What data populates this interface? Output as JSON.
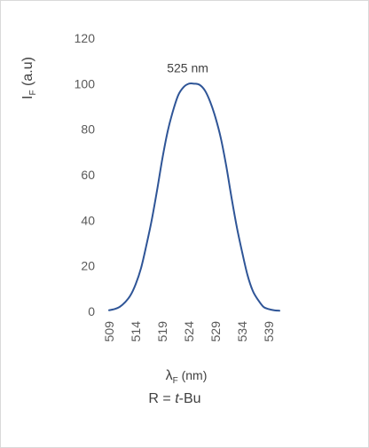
{
  "chart_data": {
    "type": "line",
    "title": "",
    "xlabel_main": "λ",
    "xlabel_sub": "F",
    "xlabel_unit": " (nm)",
    "caption_prefix": "R = ",
    "caption_italic": "t",
    "caption_suffix": "-Bu",
    "ylabel_main": "I",
    "ylabel_sub": "F",
    "ylabel_unit": " (a.u)",
    "xlim": [
      509,
      541
    ],
    "ylim": [
      0,
      120
    ],
    "x_ticks": [
      "509",
      "514",
      "519",
      "524",
      "529",
      "534",
      "539"
    ],
    "y_ticks": [
      "0",
      "20",
      "40",
      "60",
      "80",
      "100",
      "120"
    ],
    "grid": false,
    "series": [
      {
        "color": "#2f5597",
        "x": [
          509,
          510,
          511,
          512,
          513,
          514,
          515,
          516,
          517,
          518,
          519,
          520,
          521,
          522,
          523,
          524,
          525,
          526,
          527,
          528,
          529,
          530,
          531,
          532,
          533,
          534,
          535,
          536,
          537,
          538,
          539,
          540,
          541
        ],
        "y": [
          0.5,
          1,
          2,
          4,
          7,
          12,
          19,
          29,
          40,
          53,
          67,
          79,
          88,
          95,
          98.5,
          100,
          100,
          99.5,
          97,
          92,
          85,
          76,
          64,
          50,
          37,
          26,
          16,
          9,
          5,
          2,
          1,
          0.5,
          0.3
        ]
      }
    ],
    "annotations": [
      {
        "text": "525 nm",
        "x": 524.6,
        "y": 107
      }
    ]
  }
}
